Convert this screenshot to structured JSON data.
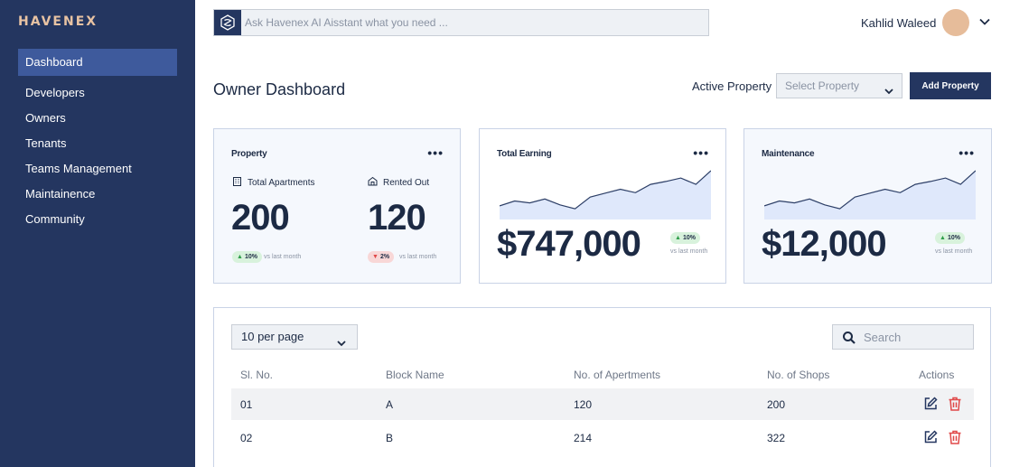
{
  "brand": {
    "logo": "HAVENEX"
  },
  "sidebar": {
    "items": [
      {
        "label": "Dashboard",
        "active": true
      },
      {
        "label": "Developers"
      },
      {
        "label": "Owners"
      },
      {
        "label": "Tenants"
      },
      {
        "label": "Teams Management"
      },
      {
        "label": "Maintainence"
      },
      {
        "label": "Community"
      }
    ]
  },
  "topbar": {
    "ai_placeholder": "Ask Havenex AI Aisstant what you need ...",
    "user_name": "Kahlid Waleed"
  },
  "header": {
    "title": "Owner Dashboard",
    "active_property_label": "Active Property",
    "select_placeholder": "Select Property",
    "add_button": "Add Property"
  },
  "cards": {
    "property": {
      "title": "Property",
      "total_label": "Total Apartments",
      "total_value": "200",
      "total_change": "10%",
      "rented_label": "Rented Out",
      "rented_value": "120",
      "rented_change": "2%",
      "vs_text": "vs last month"
    },
    "earning": {
      "title": "Total Earning",
      "value": "$747,000",
      "change": "10%",
      "vs_text": "vs last month",
      "trend": [
        0.28,
        0.38,
        0.34,
        0.42,
        0.3,
        0.22,
        0.46,
        0.54,
        0.62,
        0.55,
        0.72,
        0.78,
        0.85,
        0.72,
        1.0
      ]
    },
    "maintenance": {
      "title": "Maintenance",
      "value": "$12,000",
      "change": "10%",
      "vs_text": "vs last month",
      "trend": [
        0.28,
        0.38,
        0.34,
        0.42,
        0.3,
        0.22,
        0.46,
        0.54,
        0.62,
        0.55,
        0.72,
        0.78,
        0.85,
        0.72,
        1.0
      ]
    }
  },
  "table": {
    "per_page": "10 per page",
    "search_placeholder": "Search",
    "headers": [
      "Sl. No.",
      "Block Name",
      "No. of Apertments",
      "No. of Shops",
      "Actions"
    ],
    "rows": [
      {
        "sl": "01",
        "block": "A",
        "apartments": "120",
        "shops": "200"
      },
      {
        "sl": "02",
        "block": "B",
        "apartments": "214",
        "shops": "322"
      }
    ]
  },
  "colors": {
    "sidebar": "#243660",
    "accent": "#3e5a9c",
    "positive": "#d8f2dc",
    "negative": "#f8d7d7",
    "delete": "#e04848"
  },
  "icons": [
    "ai-logo-icon",
    "chevron-down-icon",
    "more-icon",
    "building-icon",
    "house-icon",
    "arrow-up-icon",
    "arrow-down-icon",
    "search-icon",
    "edit-icon",
    "delete-icon"
  ]
}
